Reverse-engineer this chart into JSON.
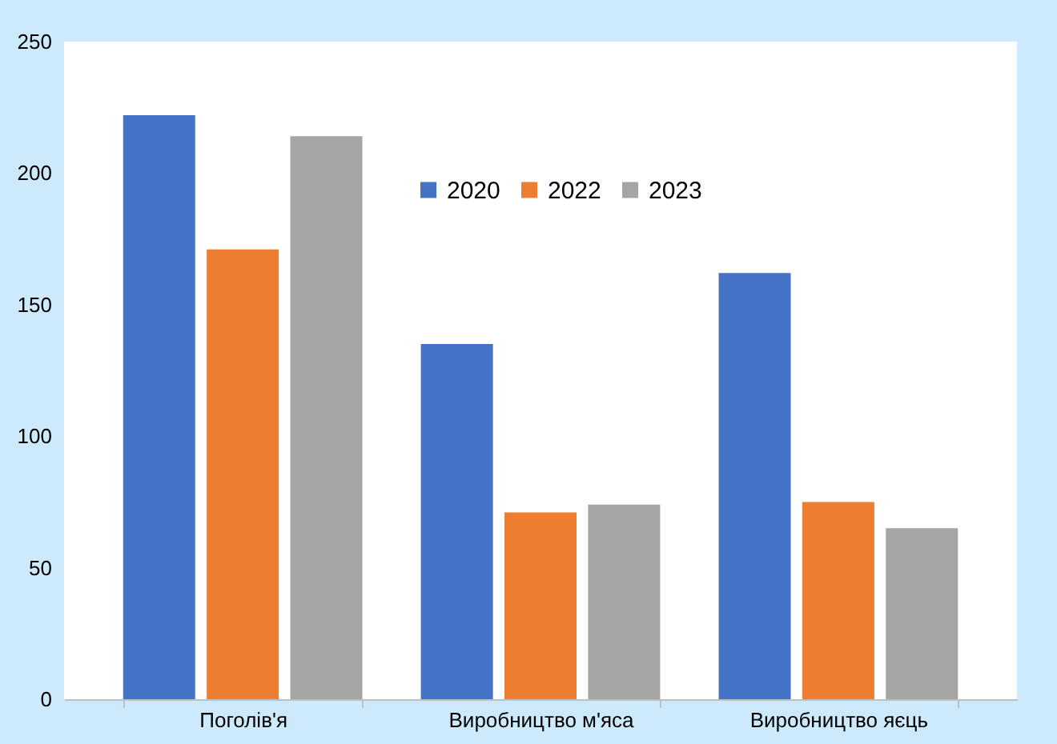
{
  "chart_data": {
    "type": "bar",
    "categories": [
      "Поголів'я",
      "Виробництво м'яса",
      "Виробництво яєць"
    ],
    "series": [
      {
        "name": "2020",
        "color": "#4472c4",
        "values": [
          222,
          135,
          162
        ]
      },
      {
        "name": "2022",
        "color": "#ed7d31",
        "values": [
          171,
          71,
          75
        ]
      },
      {
        "name": "2023",
        "color": "#a5a5a5",
        "values": [
          214,
          74,
          65
        ]
      }
    ],
    "ylim": [
      0,
      250
    ],
    "yticks": [
      0,
      50,
      100,
      150,
      200,
      250
    ],
    "grid": false,
    "legend": "top right"
  }
}
